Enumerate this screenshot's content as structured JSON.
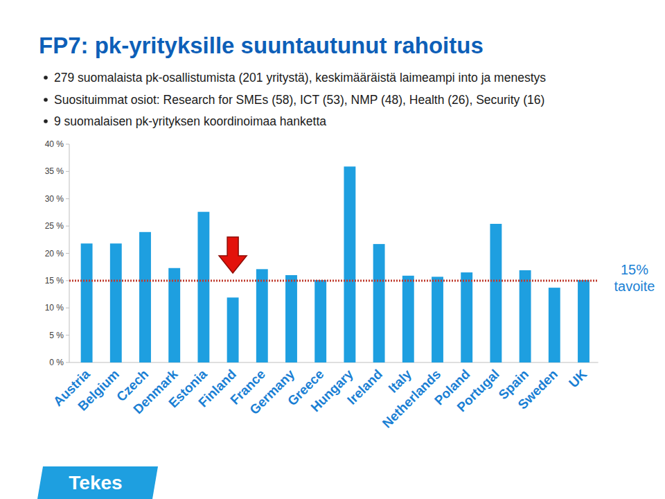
{
  "title": "FP7: pk-yrityksille suuntautunut rahoitus",
  "bullets": [
    "279 suomalaista pk-osallistumista (201 yritystä), keskimääräistä laimeampi into ja menestys",
    "Suosituimmat osiot: Research for SMEs (58), ICT (53), NMP (48), Health (26), Security (16)",
    "9 suomalaisen pk-yrityksen koordinoimaa hanketta"
  ],
  "logo": "Tekes",
  "chart_data": {
    "type": "bar",
    "categories": [
      "Austria",
      "Belgium",
      "Czech",
      "Denmark",
      "Estonia",
      "Finland",
      "France",
      "Germany",
      "Greece",
      "Hungary",
      "Ireland",
      "Italy",
      "Netherlands",
      "Poland",
      "Portugal",
      "Spain",
      "Sweden",
      "UK"
    ],
    "values": [
      21.8,
      21.8,
      23.9,
      17.3,
      27.6,
      11.9,
      17.1,
      16.0,
      15.1,
      35.9,
      21.7,
      15.9,
      15.7,
      16.5,
      25.4,
      16.9,
      13.7,
      15.1
    ],
    "color": "#1e9fe0",
    "ylim": [
      0,
      40
    ],
    "yticks": [
      {
        "value": 0,
        "label": "0 %"
      },
      {
        "value": 5,
        "label": "5 %"
      },
      {
        "value": 10,
        "label": "10 %"
      },
      {
        "value": 15,
        "label": "15 %"
      },
      {
        "value": 20,
        "label": "20 %"
      },
      {
        "value": 25,
        "label": "25 %"
      },
      {
        "value": 30,
        "label": "30 %"
      },
      {
        "value": 35,
        "label": "35 %"
      },
      {
        "value": 40,
        "label": "40 %"
      }
    ],
    "grid": false,
    "target": 15,
    "target_label": "15% tavoite",
    "highlight": "Finland"
  }
}
